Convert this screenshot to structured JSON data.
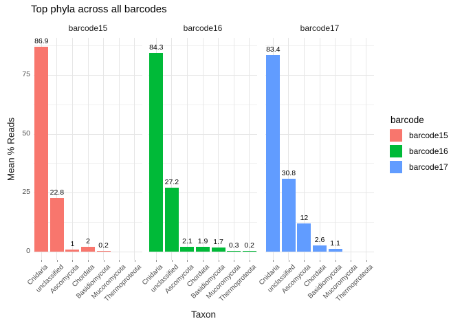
{
  "chart_data": {
    "type": "bar",
    "title": "Top phyla across all barcodes",
    "xlabel": "Taxon",
    "ylabel": "Mean % Reads",
    "ylim": [
      0,
      91
    ],
    "y_ticks": [
      0,
      25,
      50,
      75
    ],
    "grid": "white background, light gray major and minor gridlines (ggplot theme_minimal)",
    "legend_position": "right",
    "legend_title": "barcode",
    "categories": [
      "Cnidaria",
      "unclassified",
      "Ascomycota",
      "Chordata",
      "Basidiomycota",
      "Mucoromycota",
      "Thermoproteota"
    ],
    "facets": [
      {
        "label": "barcode15",
        "color": "#F8766D",
        "values": [
          86.9,
          22.8,
          1,
          2,
          0.2,
          null,
          null
        ],
        "bar_labels": [
          "86.9",
          "22.8",
          "1",
          "2",
          "0.2",
          "",
          ""
        ]
      },
      {
        "label": "barcode16",
        "color": "#00BA38",
        "values": [
          84.3,
          27.2,
          2.1,
          1.9,
          1.7,
          0.3,
          0.2
        ],
        "bar_labels": [
          "84.3",
          "27.2",
          "2.1",
          "1.9",
          "1.7",
          "0.3",
          "0.2"
        ]
      },
      {
        "label": "barcode17",
        "color": "#619CFF",
        "values": [
          83.4,
          30.8,
          12,
          2.6,
          1.1,
          null,
          null
        ],
        "bar_labels": [
          "83.4",
          "30.8",
          "12",
          "2.6",
          "1.1",
          "",
          ""
        ]
      }
    ]
  }
}
